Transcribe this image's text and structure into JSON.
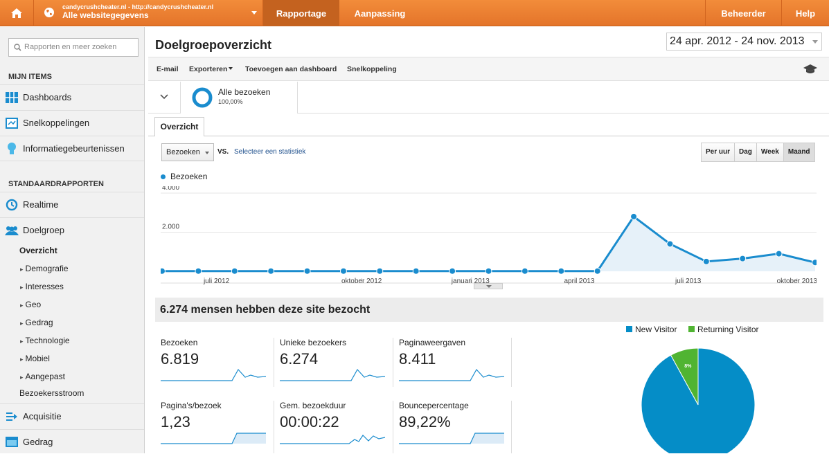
{
  "topbar": {
    "site_url": "candycrushcheater.nl - http://candycrushcheater.nl",
    "site_view": "Alle websitegegevens",
    "tabs": [
      "Rapportage",
      "Aanpassing"
    ],
    "admin": "Beheerder",
    "help": "Help"
  },
  "sidebar": {
    "search_placeholder": "Rapporten en meer zoeken",
    "my_items_heading": "MIJN ITEMS",
    "my_items": [
      "Dashboards",
      "Snelkoppelingen",
      "Informatiegebeurtenissen"
    ],
    "standard_heading": "STANDAARDRAPPORTEN",
    "realtime": "Realtime",
    "doelgroep": "Doelgroep",
    "doelgroep_sub": [
      "Overzicht",
      "Demografie",
      "Interesses",
      "Geo",
      "Gedrag",
      "Technologie",
      "Mobiel",
      "Aangepast",
      "Bezoekersstroom"
    ],
    "acquisitie": "Acquisitie",
    "gedrag": "Gedrag"
  },
  "main": {
    "title": "Doelgroepoverzicht",
    "date_range": "24 apr. 2012 - 24 nov. 2013",
    "toolbar": [
      "E-mail",
      "Exporteren",
      "Toevoegen aan dashboard",
      "Snelkoppeling"
    ],
    "segment_name": "Alle bezoeken",
    "segment_pct": "100,00%",
    "overview_tab": "Overzicht",
    "metric_select": "Bezoeken",
    "vs": "VS.",
    "select_stat": "Selecteer een statistiek",
    "periods": [
      "Per uur",
      "Dag",
      "Week",
      "Maand"
    ],
    "chart_legend": "Bezoeken",
    "summary": "6.274 mensen hebben deze site bezocht"
  },
  "metrics": [
    {
      "label": "Bezoeken",
      "value": "6.819"
    },
    {
      "label": "Unieke bezoekers",
      "value": "6.274"
    },
    {
      "label": "Paginaweergaven",
      "value": "8.411"
    },
    {
      "label": "Pagina's/bezoek",
      "value": "1,23"
    },
    {
      "label": "Gem. bezoekduur",
      "value": "00:00:22"
    },
    {
      "label": "Bouncepercentage",
      "value": "89,22%"
    }
  ],
  "pie": {
    "legend": [
      "New Visitor",
      "Returning Visitor"
    ],
    "labels": [
      "92%",
      "8%"
    ],
    "colors": [
      "#058dc7",
      "#50b432"
    ]
  },
  "colors": {
    "accent": "#e8792e",
    "series": "#1a8cce"
  },
  "chart_data": {
    "type": "line",
    "series": [
      {
        "name": "Bezoeken",
        "values": [
          10,
          10,
          10,
          10,
          10,
          10,
          10,
          10,
          10,
          10,
          10,
          10,
          10,
          2800,
          1400,
          500,
          650,
          900,
          450
        ]
      }
    ],
    "x_ticks": [
      "juli 2012",
      "oktober 2012",
      "januari 2013",
      "april 2013",
      "juli 2013",
      "oktober 2013"
    ],
    "y_ticks": [
      "2.000",
      "4.000"
    ],
    "ylim": [
      0,
      4000
    ],
    "grid": true
  }
}
